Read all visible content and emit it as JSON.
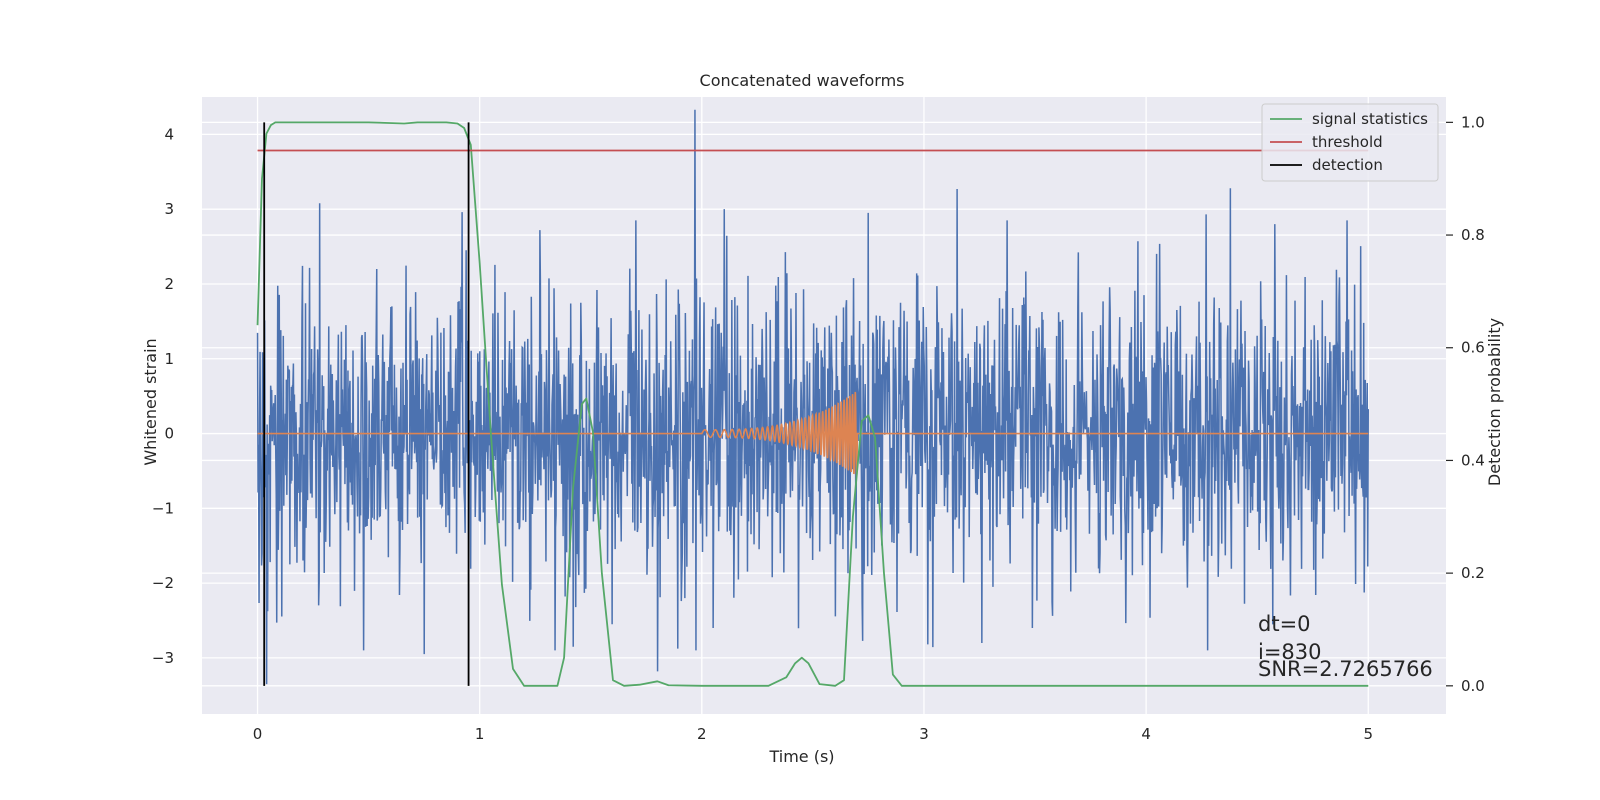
{
  "chart_data": {
    "type": "line",
    "title": "Concatenated waveforms",
    "xlabel": "Time (s)",
    "ylabel": "Whitened strain",
    "y2label": "Detection probability",
    "xlim": [
      -0.25,
      5.35
    ],
    "ylim": [
      -3.75,
      4.5
    ],
    "y2lim": [
      -0.05,
      1.045
    ],
    "xticks": [
      0,
      1,
      2,
      3,
      4,
      5
    ],
    "yticks": [
      -3,
      -2,
      -1,
      0,
      1,
      2,
      3,
      4
    ],
    "y2ticks": [
      0.0,
      0.2,
      0.4,
      0.6,
      0.8,
      1.0
    ],
    "grid": true,
    "legend_position": "top-right",
    "series": [
      {
        "name": "",
        "role": "strain",
        "color": "#4c72b0",
        "axis": "left",
        "x_range": [
          0,
          5
        ],
        "noise_std": 0.95,
        "peaks": [
          [
            1.97,
            4.33
          ],
          [
            0.28,
            3.08
          ],
          [
            0.92,
            2.96
          ],
          [
            1.42,
            -2.85
          ],
          [
            0.75,
            -2.95
          ],
          [
            1.8,
            -3.18
          ],
          [
            2.05,
            -2.6
          ],
          [
            4.38,
            3.28
          ],
          [
            4.27,
            2.93
          ],
          [
            3.26,
            -2.8
          ],
          [
            4.58,
            -2.5
          ],
          [
            0.04,
            -3.35
          ],
          [
            3.15,
            3.27
          ],
          [
            2.1,
            3.0
          ],
          [
            2.75,
            2.95
          ],
          [
            4.58,
            2.8
          ]
        ]
      },
      {
        "name": "",
        "role": "injected waveform",
        "color": "#dd8452",
        "axis": "left",
        "x_range": [
          0,
          5
        ],
        "chirp": {
          "start": 2.0,
          "end": 2.7,
          "amp_start": 0.05,
          "amp_end": 0.58,
          "cycles": 35
        }
      },
      {
        "name": "signal statistics",
        "color": "#55a868",
        "axis": "right",
        "x": [
          0.0,
          0.02,
          0.04,
          0.06,
          0.08,
          0.1,
          0.15,
          0.3,
          0.5,
          0.66,
          0.72,
          0.85,
          0.9,
          0.93,
          0.96,
          1.0,
          1.05,
          1.1,
          1.15,
          1.2,
          1.35,
          1.38,
          1.42,
          1.46,
          1.48,
          1.51,
          1.55,
          1.6,
          1.65,
          1.72,
          1.8,
          1.85,
          2.0,
          2.3,
          2.38,
          2.42,
          2.45,
          2.48,
          2.53,
          2.6,
          2.64,
          2.68,
          2.72,
          2.75,
          2.78,
          2.82,
          2.86,
          2.9,
          3.0,
          4.0,
          5.0
        ],
        "y": [
          0.64,
          0.9,
          0.98,
          0.995,
          1.0,
          1.0,
          1.0,
          1.0,
          1.0,
          0.998,
          1.0,
          1.0,
          0.998,
          0.99,
          0.96,
          0.75,
          0.45,
          0.18,
          0.03,
          0.0,
          0.0,
          0.05,
          0.35,
          0.5,
          0.51,
          0.45,
          0.2,
          0.01,
          0.0,
          0.002,
          0.008,
          0.001,
          0.0,
          0.0,
          0.015,
          0.04,
          0.05,
          0.04,
          0.003,
          0.0,
          0.01,
          0.3,
          0.47,
          0.48,
          0.44,
          0.2,
          0.02,
          0.0,
          0.0,
          0.0,
          0.0
        ]
      },
      {
        "name": "threshold",
        "color": "#c44e52",
        "axis": "right",
        "x": [
          0,
          5
        ],
        "y": [
          0.95,
          0.95
        ]
      },
      {
        "name": "detection",
        "color": "#000000",
        "axis": "right",
        "vlines": [
          0.03,
          0.95
        ]
      }
    ],
    "annotations": [
      "dt=0",
      "i=830",
      "SNR=2.7265766"
    ],
    "colors": {
      "background": "#eaeaf2",
      "grid": "#ffffff"
    }
  }
}
